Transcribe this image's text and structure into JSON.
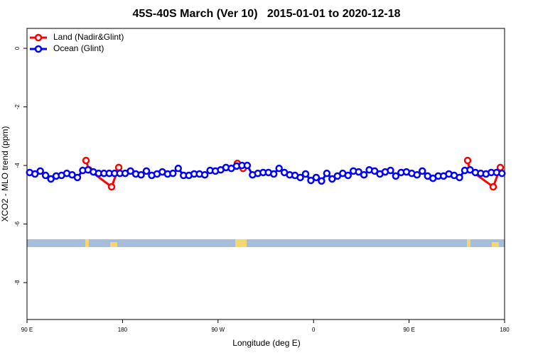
{
  "chart_data": {
    "type": "line",
    "title": "45S-40S March (Ver 10)   2015-01-01 to 2020-12-18",
    "x_label": "Longitude (deg E)",
    "y_label": "XCO2 - MLO trend (ppm)",
    "xlim": [
      90,
      540
    ],
    "xticks": [
      {
        "value": 90,
        "label": "90 E"
      },
      {
        "value": 180,
        "label": "180"
      },
      {
        "value": 270,
        "label": "90 W"
      },
      {
        "value": 360,
        "label": "0"
      },
      {
        "value": 450,
        "label": "90 E"
      },
      {
        "value": 540,
        "label": "180"
      }
    ],
    "ylim": [
      -9.26,
      0.68
    ],
    "yticks": [
      0,
      -2,
      -4,
      -6,
      -8
    ],
    "legend": "top-left",
    "series": [
      {
        "name": "Land (Nadir&Glint)",
        "color": "#ff0000",
        "x": [
          145.6,
          148.3,
          169.7,
          176.4,
          null,
          288.2,
          293.6,
          null,
          505.2,
          507.2,
          529.3,
          536.0
        ],
        "values": [
          -3.83,
          -4.15,
          -4.73,
          -4.07,
          null,
          -3.93,
          -4.1,
          null,
          -3.83,
          -4.15,
          -4.73,
          -4.07
        ]
      },
      {
        "name": "Ocean (Glint)",
        "color": "#0000ff",
        "x": [
          92.5,
          97.5,
          102.5,
          107.5,
          112.5,
          117.5,
          122.5,
          127.5,
          132.5,
          137.5,
          142.5,
          147.5,
          152.5,
          157.5,
          162.5,
          167.5,
          172.5,
          177.5,
          182.5,
          187.5,
          192.5,
          197.5,
          202.5,
          207.5,
          212.5,
          217.5,
          222.5,
          227.5,
          232.5,
          237.5,
          242.5,
          247.5,
          252.5,
          257.5,
          262.5,
          267.5,
          272.5,
          277.5,
          282.5,
          287.5,
          292.5,
          297.5,
          302.5,
          307.5,
          312.5,
          317.5,
          322.5,
          327.5,
          332.5,
          337.5,
          342.5,
          347.5,
          352.5,
          357.5,
          362.5,
          367.5,
          372.5,
          377.5,
          382.5,
          387.5,
          392.5,
          397.5,
          402.5,
          407.5,
          412.5,
          417.5,
          422.5,
          427.5,
          432.5,
          437.5,
          442.5,
          447.5,
          452.5,
          457.5,
          462.5,
          467.5,
          472.5,
          477.5,
          482.5,
          487.5,
          492.5,
          497.5,
          502.5,
          507.5,
          512.5,
          517.5,
          522.5,
          527.5,
          532.5,
          537.5
        ],
        "values": [
          -4.24,
          -4.29,
          -4.19,
          -4.34,
          -4.46,
          -4.36,
          -4.34,
          -4.27,
          -4.32,
          -4.41,
          -4.17,
          -4.15,
          -4.22,
          -4.27,
          -4.27,
          -4.27,
          -4.27,
          -4.27,
          -4.27,
          -4.19,
          -4.29,
          -4.32,
          -4.19,
          -4.34,
          -4.29,
          -4.22,
          -4.29,
          -4.27,
          -4.1,
          -4.34,
          -4.34,
          -4.29,
          -4.29,
          -4.32,
          -4.17,
          -4.19,
          -4.15,
          -4.07,
          -4.1,
          -4.02,
          -4.0,
          -4.0,
          -4.32,
          -4.27,
          -4.24,
          -4.24,
          -4.29,
          -4.1,
          -4.24,
          -4.32,
          -4.34,
          -4.41,
          -4.29,
          -4.51,
          -4.41,
          -4.53,
          -4.27,
          -4.46,
          -4.36,
          -4.27,
          -4.34,
          -4.19,
          -4.22,
          -4.32,
          -4.15,
          -4.19,
          -4.29,
          -4.22,
          -4.17,
          -4.36,
          -4.24,
          -4.22,
          -4.27,
          -4.32,
          -4.19,
          -4.36,
          -4.44,
          -4.36,
          -4.36,
          -4.29,
          -4.34,
          -4.41,
          -4.17,
          -4.15,
          -4.24,
          -4.27,
          -4.29,
          -4.24,
          -4.24,
          -4.27
        ]
      }
    ]
  }
}
